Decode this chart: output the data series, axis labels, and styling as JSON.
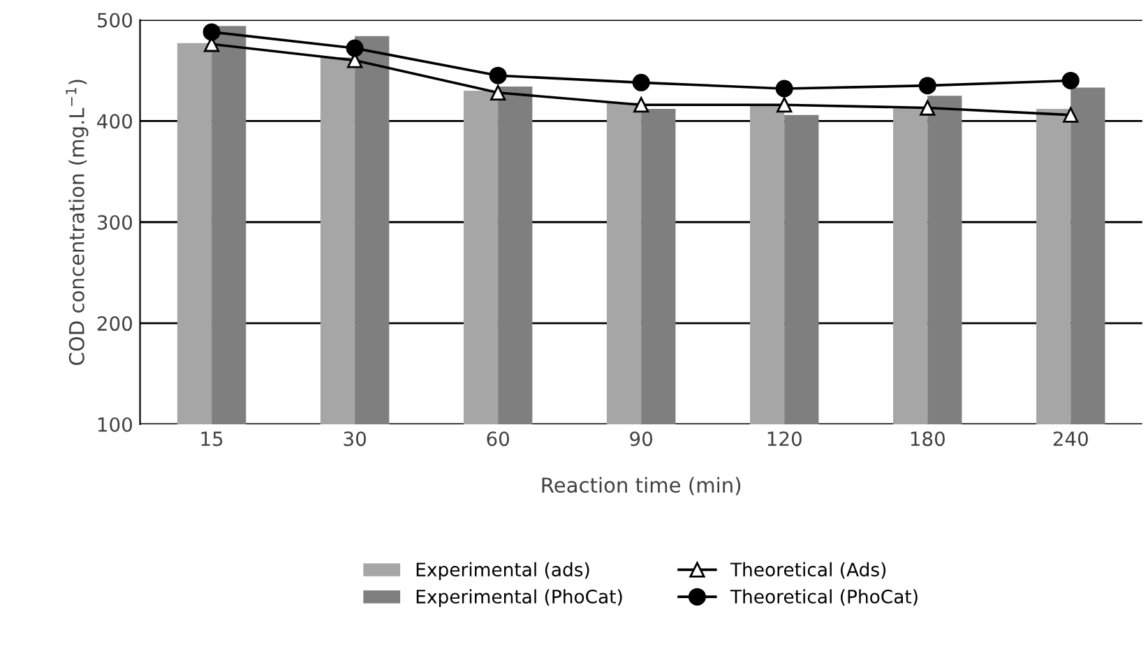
{
  "chart_data": {
    "type": "bar",
    "xlabel": "Reaction time (min)",
    "ylabel": "COD concentration (mg.L$^{−1}$)",
    "categories": [
      "15",
      "30",
      "60",
      "90",
      "120",
      "180",
      "240"
    ],
    "ylim": [
      100,
      500
    ],
    "yticks": [
      100,
      200,
      300,
      400,
      500
    ],
    "grid": "y",
    "legend": "bottom",
    "series": [
      {
        "name": "Experimental (ads)",
        "color": "#a6a6a6",
        "values": [
          477,
          463,
          430,
          418,
          416,
          414,
          412
        ]
      },
      {
        "name": "Experimental (PhoCat)",
        "color": "#7f7f7f",
        "values": [
          494,
          484,
          434,
          412,
          406,
          425,
          433
        ]
      },
      {
        "name": "Theoretical (Ads)",
        "type": "line",
        "marker": "triangle",
        "color": "#000000",
        "values": [
          476,
          460,
          428,
          416,
          416,
          413,
          406
        ]
      },
      {
        "name": "Theoretical (PhoCat)",
        "type": "line",
        "marker": "circle",
        "color": "#000000",
        "values": [
          488,
          472,
          445,
          438,
          432,
          435,
          440
        ]
      }
    ]
  }
}
